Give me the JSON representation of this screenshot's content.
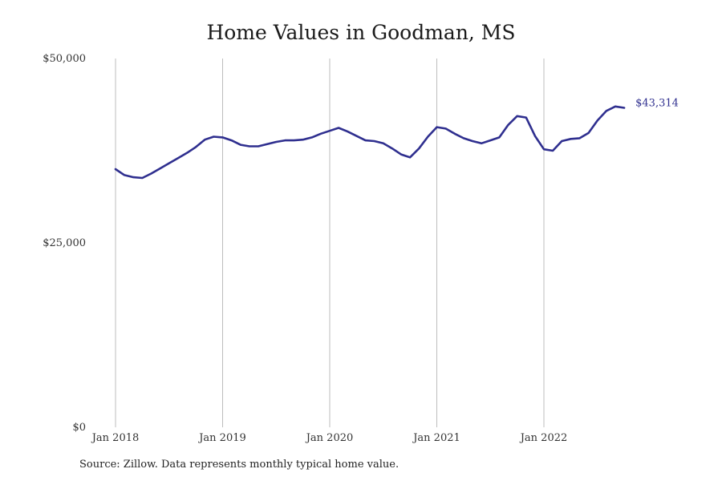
{
  "chart_data": {
    "type": "line",
    "title": "Home Values in Goodman, MS",
    "xlabel": "",
    "ylabel": "",
    "ylim": [
      0,
      50000
    ],
    "y_ticks": [
      {
        "value": 0,
        "label": "$0"
      },
      {
        "value": 25000,
        "label": "$25,000"
      },
      {
        "value": 50000,
        "label": "$50,000"
      }
    ],
    "x_ticks": [
      "Jan 2018",
      "Jan 2019",
      "Jan 2020",
      "Jan 2021",
      "Jan 2022"
    ],
    "x_start": "Jan 2018",
    "x_end": "Oct 2022",
    "grid": "vertical lines at January of each year",
    "series": [
      {
        "color": "#2f2f8f",
        "end_label": "$43,314",
        "dates": [
          "2018-01",
          "2018-02",
          "2018-03",
          "2018-04",
          "2018-05",
          "2018-06",
          "2018-07",
          "2018-08",
          "2018-09",
          "2018-10",
          "2018-11",
          "2018-12",
          "2019-01",
          "2019-02",
          "2019-03",
          "2019-04",
          "2019-05",
          "2019-06",
          "2019-07",
          "2019-08",
          "2019-09",
          "2019-10",
          "2019-11",
          "2019-12",
          "2020-01",
          "2020-02",
          "2020-03",
          "2020-04",
          "2020-05",
          "2020-06",
          "2020-07",
          "2020-08",
          "2020-09",
          "2020-10",
          "2020-11",
          "2020-12",
          "2021-01",
          "2021-02",
          "2021-03",
          "2021-04",
          "2021-05",
          "2021-06",
          "2021-07",
          "2021-08",
          "2021-09",
          "2021-10",
          "2021-11",
          "2021-12",
          "2022-01",
          "2022-02",
          "2022-03",
          "2022-04",
          "2022-05",
          "2022-06",
          "2022-07",
          "2022-08",
          "2022-09",
          "2022-10"
        ],
        "values": [
          35000,
          34200,
          33900,
          33800,
          34400,
          35100,
          35800,
          36500,
          37200,
          38000,
          39000,
          39400,
          39300,
          38900,
          38300,
          38100,
          38100,
          38400,
          38700,
          38900,
          38900,
          39000,
          39300,
          39800,
          40200,
          40600,
          40100,
          39500,
          38900,
          38800,
          38500,
          37800,
          37000,
          36600,
          37800,
          39400,
          40700,
          40500,
          39800,
          39200,
          38800,
          38500,
          38900,
          39300,
          41000,
          42200,
          42000,
          39500,
          37700,
          37500,
          38800,
          39100,
          39200,
          39900,
          41600,
          42900,
          43500,
          43314
        ]
      }
    ]
  },
  "footer": {
    "source": "Source: Zillow. Data represents monthly typical home value."
  }
}
